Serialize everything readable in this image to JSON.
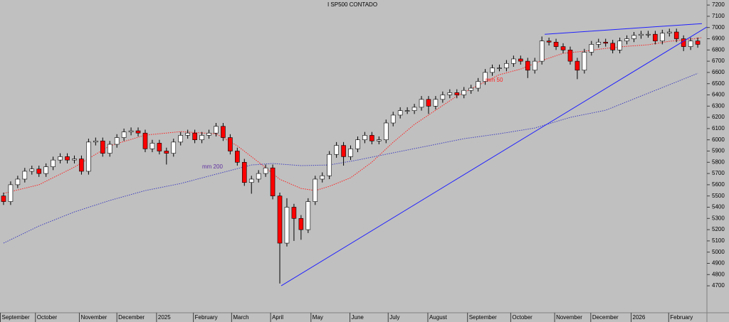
{
  "chart_data": {
    "type": "candlestick",
    "title": "I SP500 CONTADO",
    "up_color": "#ffffff",
    "down_color": "#ff0000",
    "outline_color": "#000000",
    "background": "#c0c0c0",
    "grid": false,
    "xlim": [
      -0.5,
      99.3
    ],
    "ylim": [
      4460,
      7245
    ],
    "yticks": [
      4700,
      4800,
      4900,
      5000,
      5100,
      5200,
      5300,
      5400,
      5500,
      5600,
      5700,
      5800,
      5900,
      6000,
      6100,
      6200,
      6300,
      6400,
      6500,
      6600,
      6700,
      6800,
      6900,
      7000,
      7100,
      7200
    ],
    "xticks": [
      {
        "value": -0.5,
        "label": "September"
      },
      {
        "value": 4.5,
        "label": "October"
      },
      {
        "value": 10.7,
        "label": "November"
      },
      {
        "value": 16,
        "label": "December"
      },
      {
        "value": 21.6,
        "label": "2025"
      },
      {
        "value": 26.8,
        "label": "February"
      },
      {
        "value": 32.2,
        "label": "March"
      },
      {
        "value": 37.7,
        "label": "April"
      },
      {
        "value": 43.4,
        "label": "May"
      },
      {
        "value": 48.9,
        "label": "June"
      },
      {
        "value": 54.3,
        "label": "July"
      },
      {
        "value": 59.9,
        "label": "August"
      },
      {
        "value": 65.5,
        "label": "September"
      },
      {
        "value": 71.6,
        "label": "October"
      },
      {
        "value": 77.8,
        "label": "November"
      },
      {
        "value": 82.9,
        "label": "December"
      },
      {
        "value": 88.6,
        "label": "2026"
      },
      {
        "value": 93.9,
        "label": "February"
      }
    ],
    "open": [
      5500,
      5450,
      5600,
      5650,
      5720,
      5740,
      5700,
      5760,
      5820,
      5850,
      5820,
      5830,
      5720,
      5980,
      5990,
      5880,
      5960,
      6020,
      6070,
      6080,
      6060,
      5920,
      5970,
      5900,
      5880,
      5980,
      6040,
      6060,
      6000,
      6040,
      6060,
      6120,
      6020,
      5900,
      5800,
      5620,
      5650,
      5700,
      5750,
      5500,
      5080,
      5400,
      5300,
      5200,
      5450,
      5650,
      5680,
      5870,
      5950,
      5850,
      5920,
      6000,
      6040,
      5990,
      6000,
      6150,
      6220,
      6260,
      6260,
      6290,
      6360,
      6300,
      6360,
      6400,
      6420,
      6400,
      6440,
      6460,
      6520,
      6600,
      6640,
      6640,
      6680,
      6720,
      6700,
      6620,
      6700,
      6880,
      6870,
      6830,
      6800,
      6700,
      6620,
      6780,
      6850,
      6870,
      6860,
      6800,
      6880,
      6900,
      6930,
      6940,
      6940,
      6880,
      6950,
      6960,
      6900,
      6830,
      6880
    ],
    "high": [
      5530,
      5630,
      5680,
      5750,
      5770,
      5770,
      5790,
      5850,
      5880,
      5880,
      5860,
      5860,
      6010,
      6020,
      6020,
      5990,
      6050,
      6100,
      6110,
      6110,
      6090,
      6000,
      6000,
      5930,
      6010,
      6070,
      6090,
      6090,
      6070,
      6090,
      6150,
      6150,
      6050,
      5930,
      5830,
      5680,
      5730,
      5780,
      5780,
      5530,
      5480,
      5430,
      5330,
      5480,
      5680,
      5710,
      5900,
      5980,
      5980,
      5950,
      6030,
      6070,
      6070,
      6030,
      6180,
      6250,
      6290,
      6290,
      6320,
      6390,
      6390,
      6390,
      6430,
      6450,
      6450,
      6470,
      6490,
      6550,
      6630,
      6670,
      6670,
      6710,
      6750,
      6750,
      6730,
      6730,
      6920,
      6910,
      6900,
      6860,
      6830,
      6730,
      6810,
      6880,
      6900,
      6900,
      6890,
      6910,
      6930,
      6960,
      6970,
      6970,
      6970,
      6980,
      6990,
      6990,
      6930,
      6910,
      6910
    ],
    "low": [
      5420,
      5420,
      5570,
      5620,
      5690,
      5670,
      5670,
      5730,
      5790,
      5790,
      5790,
      5690,
      5690,
      5950,
      5850,
      5850,
      5930,
      5990,
      6040,
      6030,
      5890,
      5890,
      5870,
      5780,
      5850,
      5950,
      6010,
      5970,
      5970,
      6010,
      6030,
      5990,
      5870,
      5770,
      5590,
      5520,
      5620,
      5670,
      5470,
      4720,
      5050,
      5100,
      5110,
      5170,
      5420,
      5620,
      5650,
      5840,
      5770,
      5820,
      5890,
      5970,
      5960,
      5960,
      5970,
      6120,
      6190,
      6230,
      6230,
      6260,
      6230,
      6270,
      6330,
      6370,
      6370,
      6370,
      6410,
      6430,
      6490,
      6570,
      6610,
      6610,
      6650,
      6670,
      6550,
      6590,
      6670,
      6840,
      6800,
      6770,
      6670,
      6540,
      6590,
      6750,
      6820,
      6830,
      6770,
      6770,
      6850,
      6870,
      6900,
      6910,
      6850,
      6850,
      6920,
      6870,
      6790,
      6800,
      6820
    ],
    "close": [
      5450,
      5600,
      5650,
      5720,
      5740,
      5700,
      5760,
      5820,
      5850,
      5820,
      5830,
      5720,
      5980,
      5990,
      5880,
      5960,
      6020,
      6070,
      6080,
      6060,
      5920,
      5970,
      5900,
      5880,
      5980,
      6040,
      6060,
      6000,
      6040,
      6060,
      6120,
      6020,
      5900,
      5800,
      5620,
      5650,
      5700,
      5750,
      5500,
      5080,
      5400,
      5300,
      5200,
      5450,
      5650,
      5680,
      5870,
      5950,
      5850,
      5920,
      6000,
      6040,
      5990,
      6000,
      6150,
      6220,
      6260,
      6260,
      6290,
      6360,
      6300,
      6360,
      6400,
      6420,
      6400,
      6440,
      6460,
      6520,
      6600,
      6640,
      6640,
      6680,
      6720,
      6700,
      6620,
      6700,
      6880,
      6870,
      6830,
      6800,
      6700,
      6620,
      6780,
      6850,
      6870,
      6860,
      6800,
      6880,
      6900,
      6930,
      6940,
      6940,
      6880,
      6950,
      6960,
      6900,
      6830,
      6880,
      6850
    ],
    "moving_averages": [
      {
        "name": "mm 50",
        "color": "#ff2020",
        "x": [
          0,
          5,
          10,
          15,
          20,
          25,
          30,
          33,
          36,
          39,
          42,
          44,
          46,
          49,
          52,
          55,
          58,
          61,
          64,
          67,
          70,
          73,
          76,
          79,
          82,
          85,
          88,
          91,
          94,
          97,
          98.5
        ],
        "values": [
          5523,
          5600,
          5757,
          5947,
          6042,
          6073,
          6054,
          5947,
          5801,
          5649,
          5567,
          5548,
          5586,
          5662,
          5801,
          5978,
          6137,
          6263,
          6390,
          6485,
          6580,
          6630,
          6706,
          6770,
          6789,
          6814,
          6833,
          6846,
          6877,
          6896,
          6909
        ]
      },
      {
        "name": "mm 200",
        "color": "#4040c0",
        "x": [
          0,
          5,
          10,
          15,
          20,
          25,
          30,
          35,
          38,
          42,
          46,
          50,
          55,
          60,
          65,
          70,
          75,
          80,
          85,
          90,
          95,
          98
        ],
        "values": [
          5080,
          5232,
          5358,
          5460,
          5548,
          5611,
          5694,
          5776,
          5789,
          5770,
          5776,
          5820,
          5884,
          5947,
          6010,
          6054,
          6105,
          6200,
          6263,
          6390,
          6516,
          6592
        ]
      }
    ],
    "trendlines": [
      {
        "color": "#2020ff",
        "x": [
          39.2,
          99.3
        ],
        "values": [
          4700,
          7005
        ]
      },
      {
        "color": "#2020ff",
        "x": [
          76.4,
          98.6
        ],
        "values": [
          6940,
          7035
        ]
      }
    ]
  }
}
